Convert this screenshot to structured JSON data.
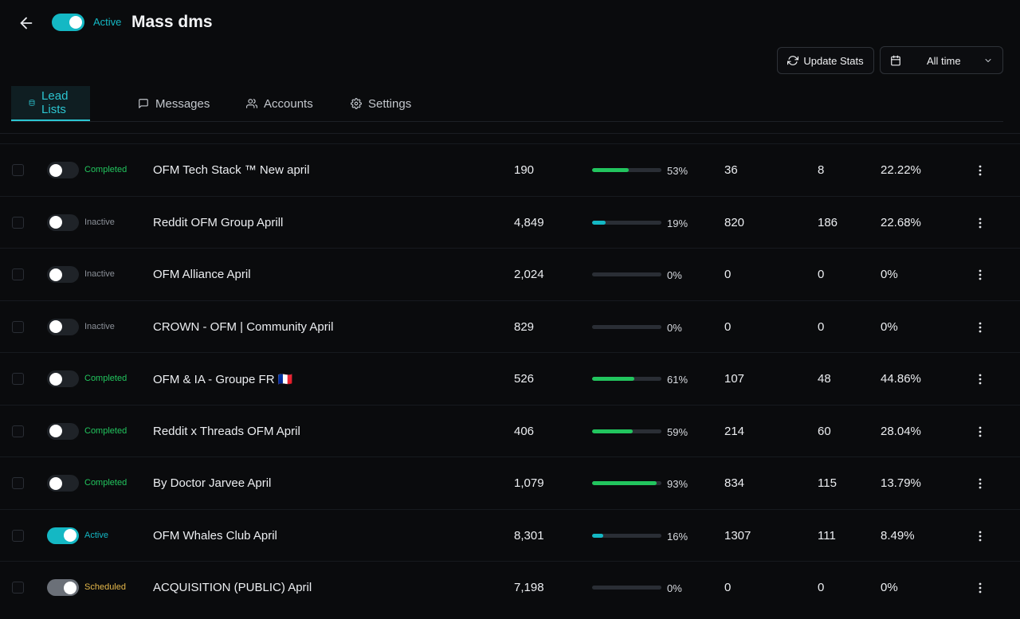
{
  "header": {
    "status_label": "Active",
    "title": "Mass dms"
  },
  "toolbar": {
    "update_label": "Update Stats",
    "range_value": "All time"
  },
  "tabs": [
    {
      "label": "Lead Lists",
      "icon": "database-icon"
    },
    {
      "label": "Messages",
      "icon": "message-icon"
    },
    {
      "label": "Accounts",
      "icon": "users-icon"
    },
    {
      "label": "Settings",
      "icon": "gear-icon"
    }
  ],
  "colors": {
    "accent": "#14b8c4",
    "completed": "#22c55e",
    "inactive": "#8b9098",
    "scheduled": "#e5b84a",
    "progress_green": "#22c55e",
    "progress_cyan": "#14b8c4"
  },
  "rows": [
    {
      "status": "Completed",
      "name": "OFM Tech Stack ™ New april",
      "leads": "190",
      "progress": 53,
      "progress_label": "53%",
      "sent": "36",
      "replies": "8",
      "rate": "22.22%"
    },
    {
      "status": "Inactive",
      "name": "Reddit OFM Group Aprill",
      "leads": "4,849",
      "progress": 19,
      "progress_label": "19%",
      "sent": "820",
      "replies": "186",
      "rate": "22.68%"
    },
    {
      "status": "Inactive",
      "name": "OFM Alliance April",
      "leads": "2,024",
      "progress": 0,
      "progress_label": "0%",
      "sent": "0",
      "replies": "0",
      "rate": "0%"
    },
    {
      "status": "Inactive",
      "name": "CROWN - OFM | Community April",
      "leads": "829",
      "progress": 0,
      "progress_label": "0%",
      "sent": "0",
      "replies": "0",
      "rate": "0%"
    },
    {
      "status": "Completed",
      "name": "OFM & IA - Groupe FR 🇫🇷",
      "leads": "526",
      "progress": 61,
      "progress_label": "61%",
      "sent": "107",
      "replies": "48",
      "rate": "44.86%"
    },
    {
      "status": "Completed",
      "name": "Reddit x Threads OFM April",
      "leads": "406",
      "progress": 59,
      "progress_label": "59%",
      "sent": "214",
      "replies": "60",
      "rate": "28.04%"
    },
    {
      "status": "Completed",
      "name": "By Doctor Jarvee April",
      "leads": "1,079",
      "progress": 93,
      "progress_label": "93%",
      "sent": "834",
      "replies": "115",
      "rate": "13.79%"
    },
    {
      "status": "Active",
      "name": "OFM Whales Club April",
      "leads": "8,301",
      "progress": 16,
      "progress_label": "16%",
      "sent": "1307",
      "replies": "111",
      "rate": "8.49%"
    },
    {
      "status": "Scheduled",
      "name": "ACQUISITION (PUBLIC) April",
      "leads": "7,198",
      "progress": 0,
      "progress_label": "0%",
      "sent": "0",
      "replies": "0",
      "rate": "0%"
    }
  ]
}
